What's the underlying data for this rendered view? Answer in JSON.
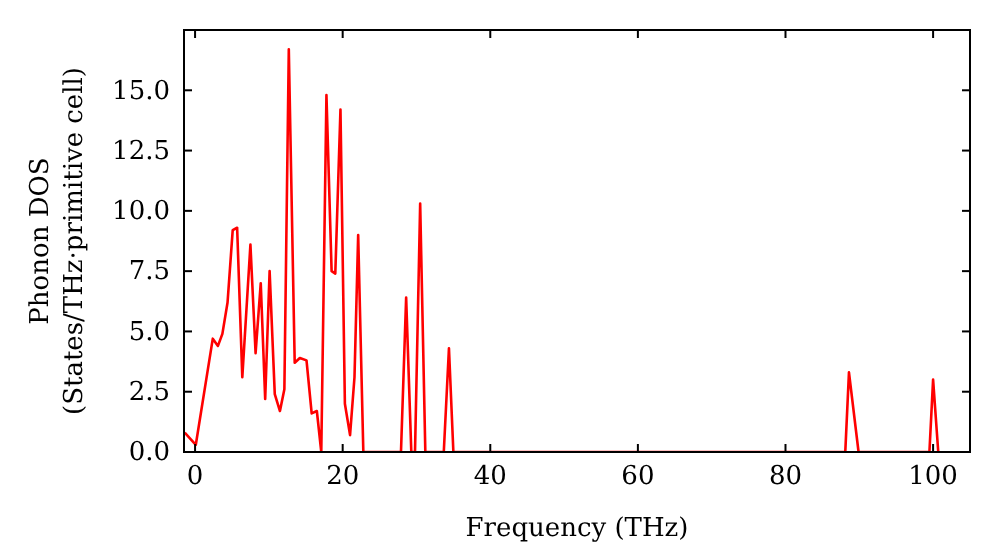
{
  "chart_data": {
    "type": "line",
    "xlabel": "Frequency (THz)",
    "ylabel": "Phonon DOS\n(States/THz·primitive cell)",
    "x": [
      -1.4,
      0.1,
      2.4,
      3.1,
      3.7,
      4.4,
      5.1,
      5.7,
      6.4,
      7.5,
      8.2,
      8.9,
      9.5,
      10.1,
      10.8,
      11.5,
      12.1,
      12.7,
      13.5,
      14.2,
      15.1,
      15.8,
      16.5,
      17.1,
      17.8,
      18.5,
      19.0,
      19.7,
      20.3,
      21.0,
      21.6,
      22.1,
      22.8,
      27.9,
      28.6,
      29.3,
      29.8,
      30.5,
      31.2,
      33.7,
      34.4,
      35.0,
      88.1,
      88.6,
      89.9,
      99.5,
      100.0,
      100.7
    ],
    "series": [
      {
        "color": "#ff0000",
        "values": [
          0.8,
          0.3,
          4.7,
          4.4,
          4.9,
          6.2,
          9.2,
          9.3,
          3.1,
          8.6,
          4.1,
          7.0,
          2.2,
          7.5,
          2.4,
          1.7,
          2.6,
          16.7,
          3.7,
          3.9,
          3.8,
          1.6,
          1.7,
          0,
          14.8,
          7.5,
          7.4,
          14.2,
          2.0,
          0.7,
          3.1,
          9.0,
          0,
          0,
          6.4,
          0,
          0,
          10.3,
          0,
          0,
          4.3,
          0,
          0,
          3.3,
          0,
          0,
          3.0,
          0
        ]
      }
    ],
    "xlim": [
      -1.5,
      105
    ],
    "ylim": [
      0,
      17.5
    ],
    "xticks": [
      0,
      20,
      40,
      60,
      80,
      100
    ],
    "yticks": [
      {
        "value": 0,
        "label": "0.0"
      },
      {
        "value": 2.5,
        "label": "2.5"
      },
      {
        "value": 5,
        "label": "5.0"
      },
      {
        "value": 7.5,
        "label": "7.5"
      },
      {
        "value": 10,
        "label": "10.0"
      },
      {
        "value": 12.5,
        "label": "12.5"
      },
      {
        "value": 15,
        "label": "15.0"
      }
    ],
    "grid": false,
    "marker": "none",
    "line_style": "solid"
  }
}
